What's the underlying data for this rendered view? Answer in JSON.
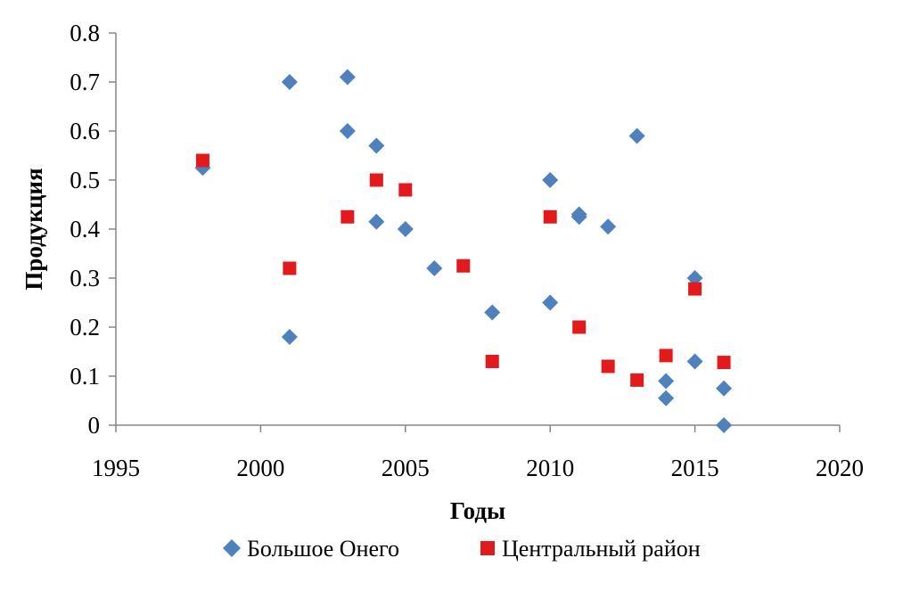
{
  "chart_data": {
    "type": "scatter",
    "title": "",
    "xlabel": "Годы",
    "ylabel": "Продукция",
    "xlim": [
      1995,
      2020
    ],
    "ylim": [
      0,
      0.8
    ],
    "x_ticks": [
      "1995",
      "2000",
      "2005",
      "2010",
      "2015",
      "2020"
    ],
    "y_ticks": [
      "0",
      "0.1",
      "0.2",
      "0.3",
      "0.4",
      "0.5",
      "0.6",
      "0.7",
      "0.8"
    ],
    "grid": false,
    "legend_position": "bottom",
    "series": [
      {
        "name": "Большое Онего",
        "marker": "diamond",
        "color": "#4f81bd",
        "points": [
          {
            "x": 1998,
            "y": 0.525
          },
          {
            "x": 2001,
            "y": 0.7
          },
          {
            "x": 2001,
            "y": 0.18
          },
          {
            "x": 2003,
            "y": 0.71
          },
          {
            "x": 2003,
            "y": 0.6
          },
          {
            "x": 2004,
            "y": 0.57
          },
          {
            "x": 2004,
            "y": 0.415
          },
          {
            "x": 2005,
            "y": 0.4
          },
          {
            "x": 2006,
            "y": 0.32
          },
          {
            "x": 2008,
            "y": 0.23
          },
          {
            "x": 2010,
            "y": 0.5
          },
          {
            "x": 2010,
            "y": 0.25
          },
          {
            "x": 2011,
            "y": 0.43
          },
          {
            "x": 2011,
            "y": 0.425
          },
          {
            "x": 2012,
            "y": 0.405
          },
          {
            "x": 2013,
            "y": 0.59
          },
          {
            "x": 2014,
            "y": 0.09
          },
          {
            "x": 2014,
            "y": 0.055
          },
          {
            "x": 2015,
            "y": 0.3
          },
          {
            "x": 2015,
            "y": 0.13
          },
          {
            "x": 2016,
            "y": 0.075
          },
          {
            "x": 2016,
            "y": 0.0
          }
        ]
      },
      {
        "name": "Центральный район",
        "marker": "square",
        "color": "#e31a1c",
        "points": [
          {
            "x": 1998,
            "y": 0.54
          },
          {
            "x": 2001,
            "y": 0.32
          },
          {
            "x": 2003,
            "y": 0.425
          },
          {
            "x": 2004,
            "y": 0.5
          },
          {
            "x": 2005,
            "y": 0.48
          },
          {
            "x": 2007,
            "y": 0.325
          },
          {
            "x": 2008,
            "y": 0.13
          },
          {
            "x": 2010,
            "y": 0.425
          },
          {
            "x": 2011,
            "y": 0.2
          },
          {
            "x": 2012,
            "y": 0.12
          },
          {
            "x": 2013,
            "y": 0.092
          },
          {
            "x": 2014,
            "y": 0.142
          },
          {
            "x": 2015,
            "y": 0.278
          },
          {
            "x": 2016,
            "y": 0.128
          }
        ]
      }
    ]
  }
}
